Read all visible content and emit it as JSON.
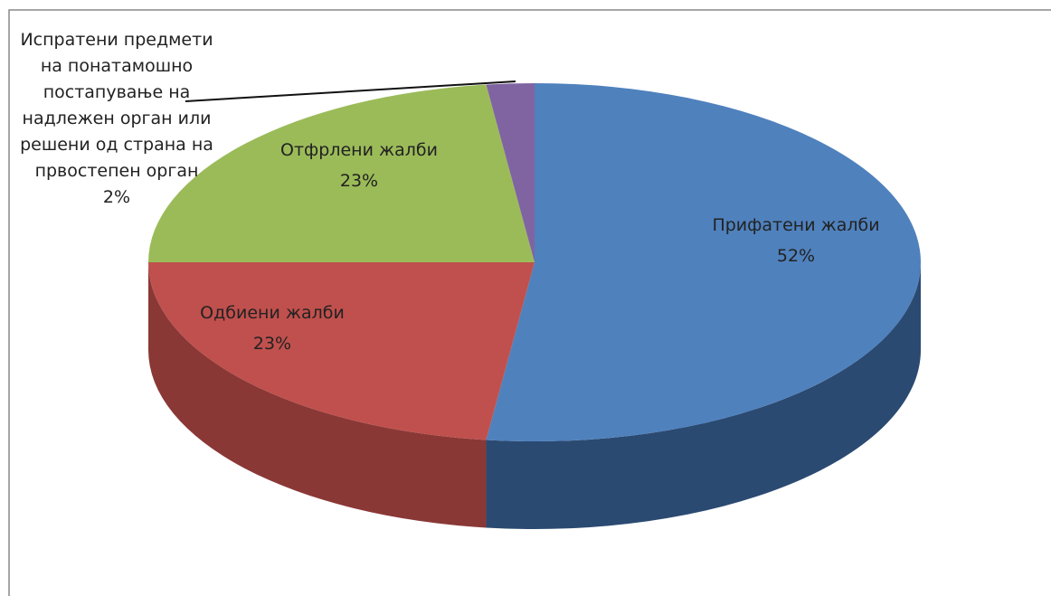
{
  "chart_data": {
    "type": "pie",
    "categories": [
      "Прифатени жалби",
      "Одбиени жалби",
      "Отфрлени жалби",
      "Испратени предмети на понатамошно постапување на надлежен орган или решени од страна на првостепен орган"
    ],
    "values": [
      52,
      23,
      23,
      2
    ],
    "value_labels": [
      "52%",
      "23%",
      "23%",
      "2%"
    ],
    "colors": [
      "#4f81bd",
      "#c0504d",
      "#9bbb59",
      "#8064a2"
    ],
    "side_colors": [
      "#2b4a72",
      "#8a3836",
      "#6e8a3c",
      "#5a4478"
    ]
  }
}
